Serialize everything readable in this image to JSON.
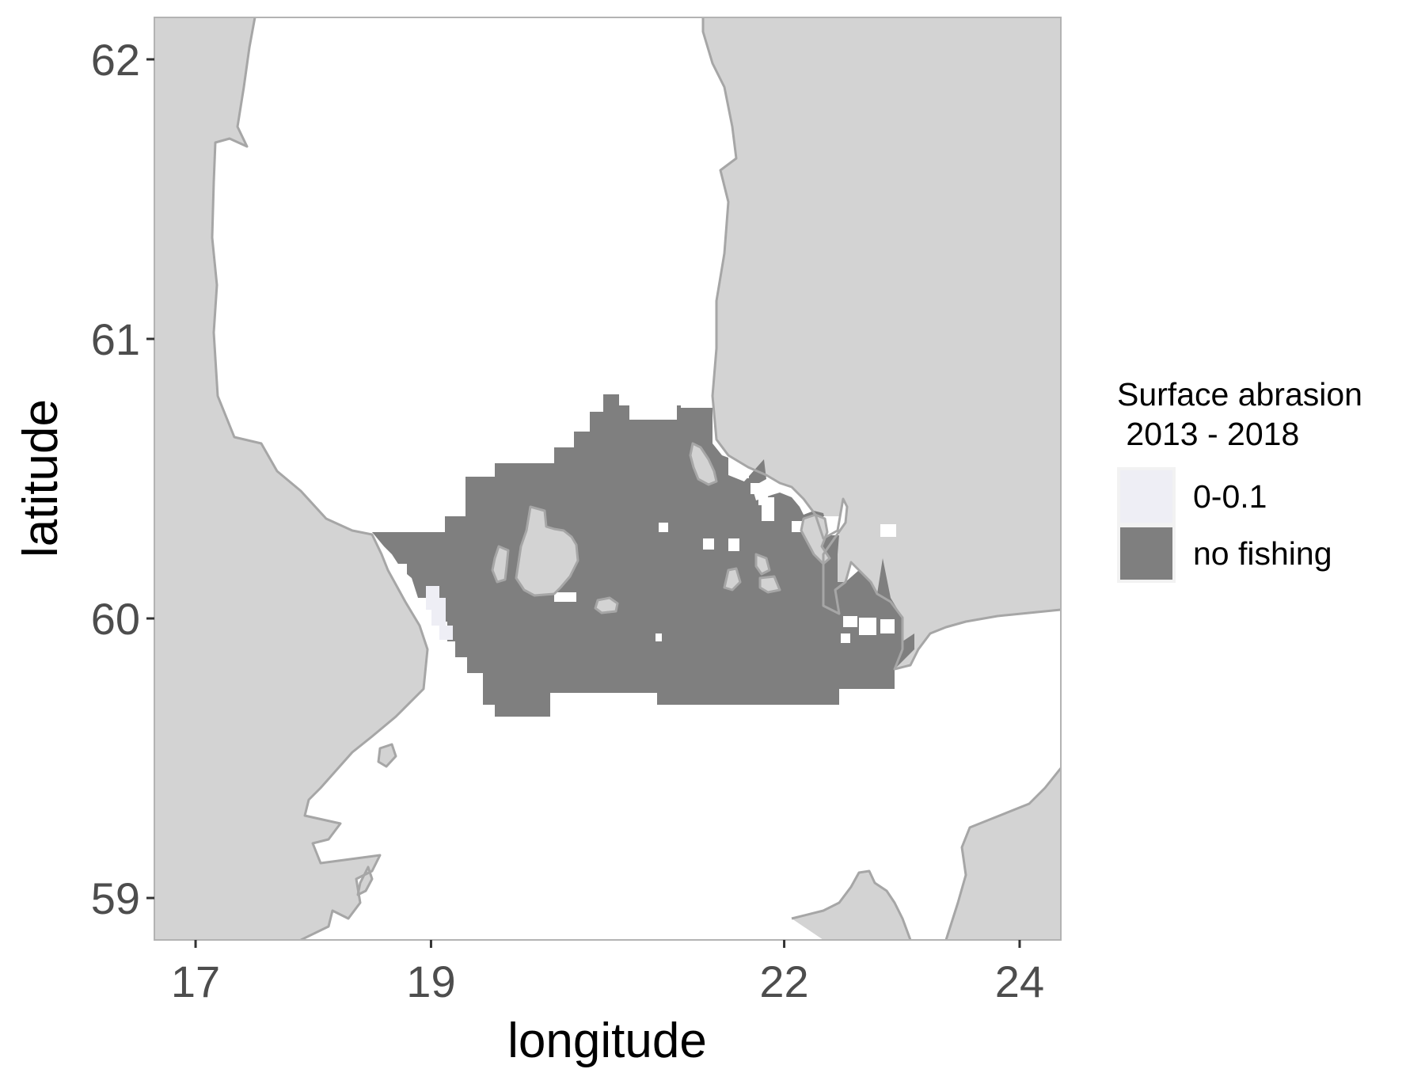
{
  "map": {
    "x_axis": {
      "label": "longitude",
      "ticks": [
        "17",
        "19",
        "22",
        "24"
      ],
      "tick_values": [
        17,
        19,
        22,
        24
      ],
      "range": [
        16.65,
        24.35
      ]
    },
    "y_axis": {
      "label": "latitude",
      "ticks": [
        "59",
        "60",
        "61",
        "62"
      ],
      "tick_values": [
        59,
        60,
        61,
        62
      ],
      "range": [
        58.85,
        62.15
      ]
    },
    "legend": {
      "title_line1": "Surface abrasion",
      "title_line2": " 2013 - 2018",
      "items": [
        {
          "label": "0-0.1",
          "color": "#eeeef5"
        },
        {
          "label": "no fishing",
          "color": "#7f7f7f"
        }
      ]
    },
    "colors": {
      "land": "#d3d3d3",
      "coastline": "#a6a6a6",
      "sea": "#ffffff",
      "panel_border": "#b3b3b3"
    }
  }
}
